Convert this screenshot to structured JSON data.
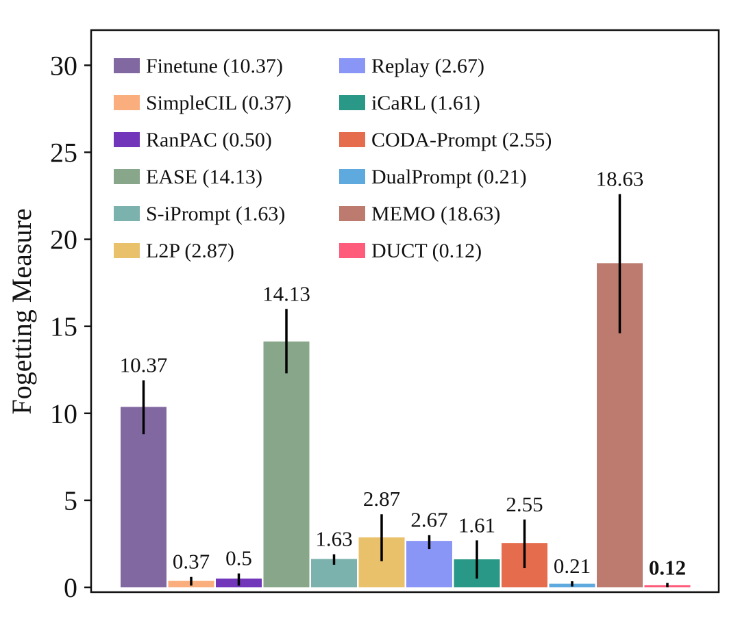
{
  "chart_data": {
    "type": "bar",
    "title": "",
    "xlabel": "",
    "ylabel": "Fogetting Measure",
    "ylim": [
      0,
      32
    ],
    "yticks": [
      "0",
      "5",
      "10",
      "15",
      "20",
      "25",
      "30"
    ],
    "grid": false,
    "legend_position": "top-left, two columns",
    "categories": [
      "Finetune",
      "SimpleCIL",
      "RanPAC",
      "EASE",
      "S-iPrompt",
      "L2P",
      "Replay",
      "iCaRL",
      "CODA-Prompt",
      "DualPrompt",
      "MEMO",
      "DUCT"
    ],
    "values": [
      10.37,
      0.37,
      0.5,
      14.13,
      1.63,
      2.87,
      2.67,
      1.61,
      2.55,
      0.21,
      18.63,
      0.12
    ],
    "error_low": [
      8.8,
      0.1,
      0.1,
      12.3,
      1.3,
      1.5,
      2.2,
      0.5,
      1.1,
      0.05,
      14.6,
      0.0
    ],
    "error_high": [
      11.9,
      0.6,
      0.8,
      16.0,
      1.9,
      4.2,
      3.0,
      2.7,
      3.9,
      0.35,
      22.6,
      0.25
    ],
    "data_labels": [
      "10.37",
      "0.37",
      "0.5",
      "14.13",
      "1.63",
      "2.87",
      "2.67",
      "1.61",
      "2.55",
      "0.21",
      "18.63",
      "0.12"
    ],
    "bold_labels": [
      false,
      false,
      false,
      false,
      false,
      false,
      false,
      false,
      false,
      false,
      false,
      true
    ],
    "colors": [
      "#8268a1",
      "#fbae7d",
      "#7236ba",
      "#88a689",
      "#7bb2ae",
      "#e9c16b",
      "#8a96f6",
      "#2a9886",
      "#e56c4d",
      "#5ea9dd",
      "#bd7a6f",
      "#ff5c7b"
    ],
    "legend_entries": [
      "Finetune (10.37)",
      "SimpleCIL (0.37)",
      "RanPAC (0.50)",
      "EASE (14.13)",
      "S-iPrompt (1.63)",
      "L2P (2.87)",
      "Replay (2.67)",
      "iCaRL (1.61)",
      "CODA-Prompt (2.55)",
      "DualPrompt (0.21)",
      "MEMO (18.63)",
      "DUCT (0.12)"
    ]
  }
}
